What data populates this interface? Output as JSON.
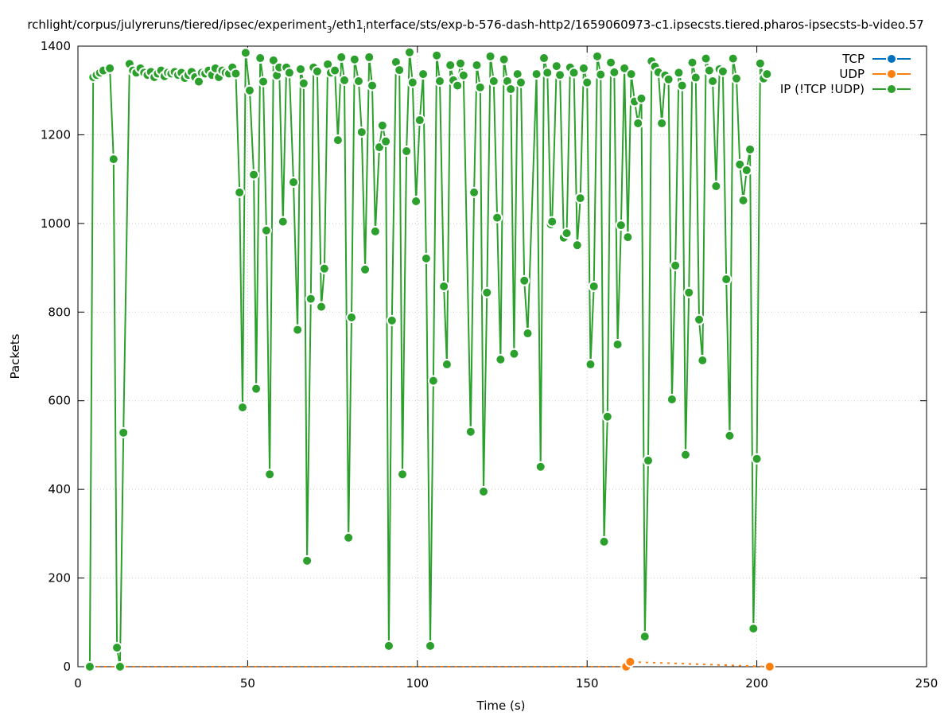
{
  "chart_data": {
    "type": "line",
    "title_parts": [
      "rchlight/corpus/julyreruns/tiered/ipsec/experiment",
      "3",
      "/eth1",
      "i",
      "nterface/sts/exp-b-576-dash-http2/1659060973-c1.ipsecsts.tiered.pharos-ipsecsts-b-video.57"
    ],
    "xlabel": "Time (s)",
    "ylabel": "Packets",
    "xlim": [
      0,
      250
    ],
    "xticks": [
      0,
      50,
      100,
      150,
      200,
      250
    ],
    "ylim": [
      0,
      1400
    ],
    "yticks": [
      0,
      200,
      400,
      600,
      800,
      1000,
      1200,
      1400
    ],
    "grid": true,
    "legend": "top-right",
    "series": [
      {
        "name": "TCP",
        "color": "#0072bd",
        "x": [],
        "values": []
      },
      {
        "name": "UDP",
        "color": "#ff7f0e",
        "x": [
          3.5,
          161.5,
          162.7,
          203.8
        ],
        "values": [
          0,
          0,
          11,
          0
        ]
      },
      {
        "name": "IP (!TCP  !UDP)",
        "color": "#2ca02c",
        "x": [
          3.5,
          4.5,
          5.5,
          6.5,
          7.5,
          9.4,
          10.5,
          11.5,
          12.4,
          13.4,
          15.2,
          16.2,
          17.2,
          18.4,
          19.5,
          20.5,
          21.5,
          22.5,
          23.5,
          24.5,
          25.5,
          26.5,
          27.5,
          28.5,
          29.5,
          30.5,
          31.5,
          32.5,
          33.5,
          34.5,
          35.6,
          36.5,
          37.5,
          38.5,
          39.5,
          40.5,
          41.5,
          42.5,
          43.5,
          44.5,
          45.5,
          46.5,
          47.6,
          48.5,
          49.4,
          50.6,
          51.8,
          52.5,
          53.7,
          54.6,
          55.5,
          56.5,
          57.6,
          58.6,
          59.3,
          60.4,
          61.4,
          62.3,
          63.5,
          64.7,
          65.6,
          66.5,
          67.5,
          68.6,
          69.4,
          70.5,
          71.7,
          72.6,
          73.6,
          74.5,
          75.7,
          76.6,
          77.6,
          78.5,
          79.7,
          80.6,
          81.5,
          82.7,
          83.6,
          84.6,
          85.8,
          86.7,
          87.6,
          88.8,
          89.7,
          90.7,
          91.6,
          92.5,
          93.7,
          94.7,
          95.6,
          96.8,
          97.7,
          98.6,
          99.6,
          100.7,
          101.7,
          102.6,
          103.8,
          104.7,
          105.7,
          106.6,
          107.8,
          108.7,
          109.7,
          110.6,
          111.8,
          112.7,
          113.6,
          115.7,
          116.7,
          117.5,
          118.5,
          119.5,
          120.5,
          121.5,
          122.5,
          123.5,
          124.5,
          125.5,
          126.5,
          127.5,
          128.5,
          129.5,
          130.5,
          131.5,
          132.5,
          135.1,
          136.3,
          137.3,
          138.3,
          139.3,
          139.7,
          141.0,
          142.0,
          143.1,
          144.0,
          145.0,
          146.1,
          147.1,
          148.0,
          149.0,
          150.0,
          151.0,
          152.0,
          153.0,
          154.0,
          155.0,
          156.0,
          157.0,
          158.0,
          159.0,
          160.0,
          161.0,
          162.0,
          163.0,
          164.0,
          165.0,
          166.0,
          167.0,
          168.0,
          169.0,
          170.0,
          171.0,
          172.0,
          173.0,
          174.0,
          175.0,
          176.0,
          177.0,
          178.0,
          179.0,
          180.0,
          181.0,
          182.0,
          183.0,
          184.0,
          185.0,
          186.0,
          187.0,
          188.0,
          189.0,
          190.0,
          191.0,
          192.0,
          193.0,
          194.0,
          195.0,
          196.0,
          197.0,
          198.0,
          199.0,
          200.0,
          201.0,
          202.0,
          203.0
        ],
        "values": [
          0,
          1330,
          1335,
          1340,
          1345,
          1350,
          1145,
          43,
          0,
          528,
          1360,
          1345,
          1340,
          1350,
          1340,
          1335,
          1342,
          1330,
          1338,
          1345,
          1332,
          1340,
          1338,
          1342,
          1335,
          1340,
          1328,
          1335,
          1342,
          1330,
          1320,
          1340,
          1338,
          1345,
          1335,
          1350,
          1330,
          1345,
          1340,
          1338,
          1352,
          1338,
          1070,
          585,
          1385,
          1300,
          1110,
          627,
          1373,
          1320,
          984,
          434,
          1368,
          1334,
          1352,
          1004,
          1352,
          1340,
          1093,
          760,
          1348,
          1316,
          239,
          830,
          1352,
          1343,
          812,
          898,
          1359,
          1340,
          1345,
          1188,
          1375,
          1323,
          291,
          788,
          1370,
          1321,
          1206,
          896,
          1375,
          1311,
          982,
          1172,
          1221,
          1185,
          47,
          781,
          1364,
          1346,
          434,
          1163,
          1386,
          1318,
          1050,
          1233,
          1337,
          921,
          47,
          645,
          1379,
          1321,
          858,
          682,
          1357,
          1323,
          1311,
          1361,
          1334,
          530,
          1070,
          1357,
          1307,
          395,
          844,
          1377,
          1321,
          1013,
          693,
          1370,
          1321,
          1303,
          706,
          1337,
          1318,
          871,
          752,
          1337,
          451,
          1373,
          1340,
          998,
          1004,
          1355,
          1335,
          968,
          978,
          1352,
          1340,
          951,
          1057,
          1350,
          1318,
          682,
          858,
          1377,
          1336,
          282,
          564,
          1363,
          1341,
          727,
          996,
          1350,
          969,
          1337,
          1275,
          1226,
          1282,
          68,
          465,
          1366,
          1354,
          1341,
          1226,
          1334,
          1325,
          603,
          905,
          1340,
          1311,
          478,
          844,
          1363,
          1329,
          783,
          691,
          1372,
          1345,
          1321,
          1084,
          1348,
          1343,
          874,
          521,
          1372,
          1327,
          1133,
          1052,
          1120,
          1167,
          86,
          469,
          1361,
          1327,
          1337
        ]
      }
    ]
  }
}
